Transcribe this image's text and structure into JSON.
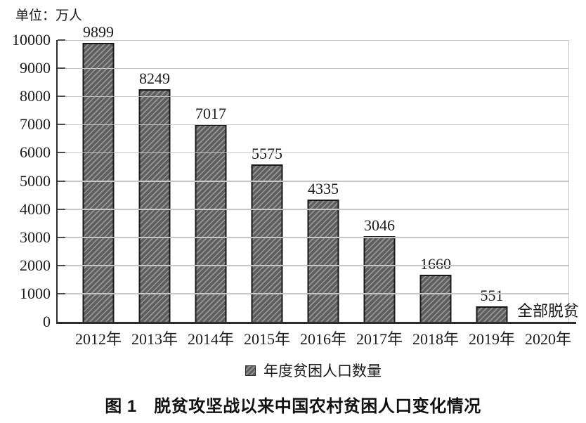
{
  "chart_data": {
    "type": "bar",
    "unit_label": "单位：万人",
    "categories": [
      "2012年",
      "2013年",
      "2014年",
      "2015年",
      "2016年",
      "2017年",
      "2018年",
      "2019年",
      "2020年"
    ],
    "values": [
      9899,
      8249,
      7017,
      5575,
      4335,
      3046,
      1660,
      551,
      null
    ],
    "bar_labels": [
      "9899",
      "8249",
      "7017",
      "5575",
      "4335",
      "3046",
      "1660",
      "551"
    ],
    "annotation": {
      "category": "2020年",
      "text": "全部脱贫"
    },
    "legend": [
      "年度贫困人口数量"
    ],
    "legend_position": "bottom",
    "ylim": [
      0,
      10000
    ],
    "ytick_interval": 1000,
    "yticks": [
      0,
      1000,
      2000,
      3000,
      4000,
      5000,
      6000,
      7000,
      8000,
      9000,
      10000
    ],
    "grid": true,
    "bar_fill_color": "#5d5d5d",
    "bar_hatch_color": "#909090",
    "bar_border_color": "#181818",
    "bar_pattern": "diagonal-hatch",
    "caption": "图 1　脱贫攻坚战以来中国农村贫困人口变化情况"
  }
}
